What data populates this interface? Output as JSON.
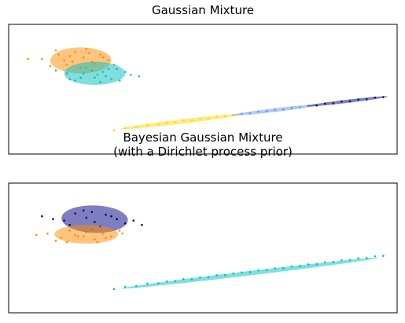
{
  "chart_data": [
    {
      "type": "scatter",
      "title": [
        "Gaussian Mixture"
      ],
      "xlim": [
        -9,
        5
      ],
      "ylim": [
        -3,
        6
      ],
      "series": [
        {
          "color": "#ff8c00",
          "x": [
            -7.8,
            -7.2,
            -6.9,
            -6.6,
            -6.3,
            -6.0,
            -5.7,
            -5.4,
            -7.5,
            -6.8,
            -6.2,
            -5.9,
            -7.0,
            -6.4,
            -5.6,
            -8.3,
            -6.1,
            -6.7,
            -5.2,
            -7.3
          ],
          "y": [
            3.6,
            3.9,
            3.2,
            4.1,
            3.7,
            3.4,
            3.9,
            3.5,
            3.1,
            3.8,
            4.3,
            3.3,
            3.5,
            3.0,
            3.7,
            3.6,
            4.0,
            3.4,
            3.2,
            4.2
          ]
        },
        {
          "color": "#00bfbf",
          "x": [
            -6.9,
            -6.4,
            -6.0,
            -5.5,
            -5.1,
            -6.6,
            -5.8,
            -5.3,
            -4.8,
            -6.2,
            -5.7,
            -4.6,
            -7.3,
            -5.9,
            -5.0,
            -6.3,
            -5.4,
            -4.3,
            -6.8,
            -5.6
          ],
          "y": [
            2.6,
            2.3,
            2.8,
            2.4,
            2.9,
            2.1,
            2.5,
            2.2,
            2.7,
            3.0,
            2.0,
            2.5,
            2.8,
            2.3,
            2.1,
            2.6,
            2.9,
            2.4,
            2.2,
            2.7
          ]
        },
        {
          "color": "#ffd700",
          "x": [
            -5.2,
            -4.8,
            -4.4,
            -4.0,
            -3.6,
            -3.3,
            -3.0,
            -2.7,
            -2.4,
            -2.1,
            -1.8,
            -1.5,
            -1.2,
            -0.9
          ],
          "y": [
            -1.35,
            -1.2,
            -1.15,
            -0.98,
            -0.95,
            -0.82,
            -0.8,
            -0.66,
            -0.68,
            -0.55,
            -0.53,
            -0.4,
            -0.38,
            -0.27
          ]
        },
        {
          "color": "#6495ed",
          "x": [
            -0.6,
            -0.3,
            0.0,
            0.3,
            0.6,
            0.9,
            1.2,
            1.5,
            1.8
          ],
          "y": [
            -0.2,
            -0.18,
            -0.06,
            -0.04,
            0.08,
            0.1,
            0.22,
            0.24,
            0.36
          ]
        },
        {
          "color": "#000080",
          "x": [
            2.1,
            2.4,
            2.7,
            3.0,
            3.3,
            3.6,
            3.9,
            4.2,
            4.5
          ],
          "y": [
            0.37,
            0.5,
            0.52,
            0.64,
            0.66,
            0.78,
            0.8,
            0.92,
            0.95
          ]
        }
      ],
      "ellipses": [
        {
          "color": "#ff8c00",
          "x": -6.4,
          "y": 3.5,
          "width": 2.2,
          "height": 1.8,
          "angle": 0
        },
        {
          "color": "#00bfbf",
          "x": -5.9,
          "y": 2.6,
          "width": 2.2,
          "height": 1.6,
          "angle": 0
        },
        {
          "color": "#ffd700",
          "x": -2.8,
          "y": -0.75,
          "width": 4.5,
          "height": 0.3,
          "angle": 13
        },
        {
          "color": "#6495ed",
          "x": 0.6,
          "y": 0.05,
          "width": 3.2,
          "height": 0.25,
          "angle": 13
        },
        {
          "color": "#000080",
          "x": 3.2,
          "y": 0.66,
          "width": 3.0,
          "height": 0.22,
          "angle": 13
        }
      ]
    },
    {
      "type": "scatter",
      "title": [
        "Bayesian Gaussian Mixture",
        "(with a Dirichlet process prior)"
      ],
      "xlim": [
        -9,
        5
      ],
      "ylim": [
        -3,
        6
      ],
      "series": [
        {
          "color": "#000080",
          "x": [
            -7.8,
            -7.0,
            -6.6,
            -6.2,
            -5.9,
            -5.5,
            -5.1,
            -4.8,
            -6.8,
            -6.3,
            -5.7,
            -5.3,
            -4.5,
            -7.4,
            -6.0,
            -4.2
          ],
          "y": [
            3.7,
            3.4,
            3.9,
            3.6,
            3.3,
            3.8,
            3.5,
            3.2,
            3.1,
            4.1,
            3.0,
            3.7,
            3.4,
            3.5,
            4.0,
            3.1
          ]
        },
        {
          "color": "#ff8c00",
          "x": [
            -7.6,
            -7.1,
            -6.8,
            -6.5,
            -6.2,
            -5.9,
            -5.6,
            -5.3,
            -5.0,
            -7.3,
            -6.6,
            -6.0,
            -5.5,
            -6.9,
            -6.3,
            -4.9,
            -8.0,
            -5.8
          ],
          "y": [
            2.5,
            2.2,
            2.7,
            2.3,
            2.6,
            2.1,
            2.5,
            2.3,
            2.7,
            2.0,
            2.4,
            2.8,
            2.2,
            1.9,
            2.3,
            2.5,
            2.4,
            1.9
          ]
        },
        {
          "color": "#00bfbf",
          "x": [
            -5.2,
            -4.8,
            -4.4,
            -4.0,
            -3.6,
            -3.3,
            -3.0,
            -2.7,
            -2.4,
            -2.1,
            -1.8,
            -1.5,
            -1.2,
            -0.9,
            -0.6,
            -0.3,
            0.0,
            0.3,
            0.6,
            0.9,
            1.2,
            1.5,
            1.8,
            2.1,
            2.4,
            2.7,
            3.0,
            3.3,
            3.6,
            3.9,
            4.2,
            4.5
          ],
          "y": [
            -1.35,
            -1.2,
            -1.15,
            -0.98,
            -0.95,
            -0.82,
            -0.8,
            -0.66,
            -0.68,
            -0.55,
            -0.53,
            -0.4,
            -0.38,
            -0.27,
            -0.2,
            -0.18,
            -0.06,
            -0.04,
            0.08,
            0.1,
            0.22,
            0.24,
            0.36,
            0.37,
            0.5,
            0.52,
            0.64,
            0.66,
            0.78,
            0.8,
            0.92,
            0.95
          ]
        }
      ],
      "ellipses": [
        {
          "color": "#000080",
          "x": -5.9,
          "y": 3.5,
          "width": 2.4,
          "height": 1.9,
          "angle": -8
        },
        {
          "color": "#ff8c00",
          "x": -6.2,
          "y": 2.45,
          "width": 2.3,
          "height": 1.3,
          "angle": 0
        },
        {
          "color": "#00bfbf",
          "x": -0.3,
          "y": -0.25,
          "width": 9.5,
          "height": 0.3,
          "angle": 13
        }
      ]
    }
  ]
}
